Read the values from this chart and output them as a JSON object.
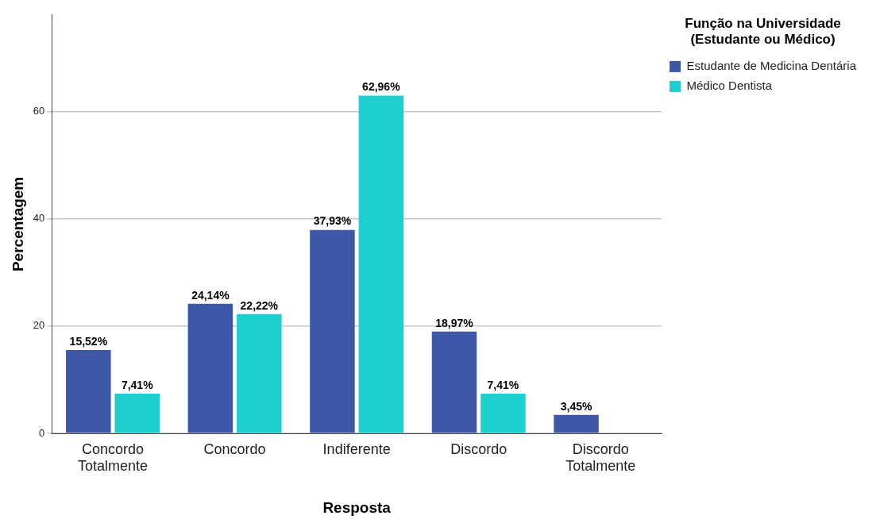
{
  "chart_data": {
    "type": "bar",
    "xlabel": "Resposta",
    "ylabel": "Percentagem",
    "legend_title": "Função na Universidade\n(Estudante ou Médico)",
    "categories": [
      "Concordo Totalmente",
      "Concordo",
      "Indiferente",
      "Discordo",
      "Discordo Totalmente"
    ],
    "series": [
      {
        "name": "Estudante de Medicina Dentária",
        "color": "#3e58a8",
        "values": [
          15.52,
          24.14,
          37.93,
          18.97,
          3.45
        ],
        "value_labels": [
          "15,52%",
          "24,14%",
          "37,93%",
          "18,97%",
          "3,45%"
        ]
      },
      {
        "name": "Médico Dentista",
        "color": "#1ecfcf",
        "values": [
          7.41,
          22.22,
          62.96,
          7.41,
          null
        ],
        "value_labels": [
          "7,41%",
          "22,22%",
          "62,96%",
          "7,41%",
          null
        ]
      }
    ],
    "ylim": [
      0,
      78
    ],
    "yticks": [
      0,
      20,
      40,
      60
    ],
    "grid": "y",
    "legend": "top right"
  }
}
